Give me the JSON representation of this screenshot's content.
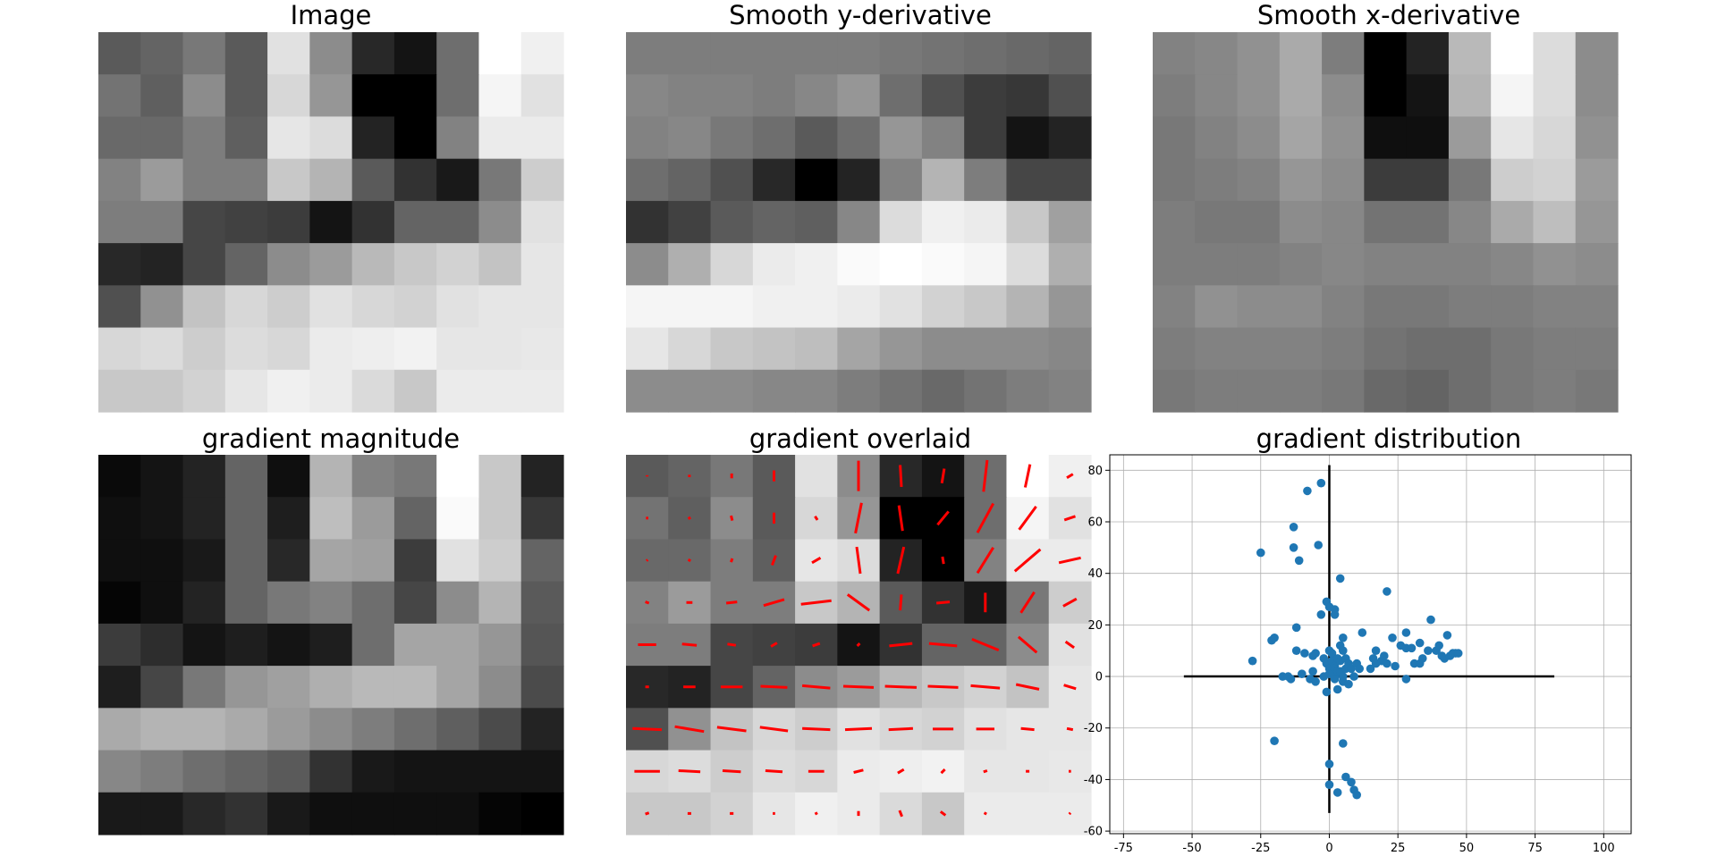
{
  "figure": {
    "panels": [
      {
        "title": "Image"
      },
      {
        "title": "Smooth y-derivative"
      },
      {
        "title": "Smooth x-derivative"
      },
      {
        "title": "gradient magnitude"
      },
      {
        "title": "gradient overlaid"
      },
      {
        "title": "gradient distribution"
      }
    ]
  },
  "chart_data": [
    {
      "type": "heatmap",
      "title": "Image",
      "colormap": "gray",
      "rows": 9,
      "cols": 11,
      "values": [
        [
          90,
          100,
          120,
          90,
          225,
          140,
          40,
          20,
          110,
          255,
          240
        ],
        [
          115,
          95,
          140,
          90,
          215,
          150,
          0,
          0,
          110,
          245,
          225
        ],
        [
          105,
          105,
          125,
          95,
          230,
          220,
          35,
          0,
          130,
          235,
          235
        ],
        [
          130,
          155,
          125,
          125,
          200,
          180,
          90,
          50,
          25,
          120,
          205
        ],
        [
          125,
          125,
          70,
          65,
          60,
          20,
          50,
          100,
          100,
          140,
          225
        ],
        [
          40,
          35,
          70,
          100,
          140,
          155,
          185,
          200,
          210,
          195,
          230
        ],
        [
          80,
          145,
          195,
          215,
          205,
          225,
          215,
          210,
          225,
          230,
          230
        ],
        [
          215,
          220,
          205,
          220,
          215,
          235,
          238,
          242,
          230,
          230,
          232
        ],
        [
          200,
          200,
          210,
          230,
          240,
          235,
          218,
          200,
          235,
          235,
          235
        ]
      ]
    },
    {
      "type": "heatmap",
      "title": "Smooth y-derivative",
      "colormap": "gray",
      "rows": 9,
      "cols": 11,
      "values": [
        [
          125,
          125,
          125,
          125,
          125,
          125,
          120,
          115,
          110,
          105,
          100
        ],
        [
          135,
          130,
          130,
          125,
          135,
          150,
          110,
          80,
          60,
          55,
          80
        ],
        [
          130,
          135,
          120,
          110,
          90,
          110,
          150,
          130,
          60,
          20,
          35
        ],
        [
          110,
          100,
          80,
          40,
          0,
          35,
          130,
          180,
          125,
          70,
          70
        ],
        [
          50,
          65,
          90,
          100,
          95,
          135,
          220,
          240,
          235,
          200,
          160
        ],
        [
          140,
          175,
          215,
          235,
          240,
          250,
          255,
          250,
          245,
          220,
          175
        ],
        [
          245,
          245,
          245,
          240,
          240,
          235,
          225,
          210,
          200,
          180,
          150
        ],
        [
          230,
          215,
          200,
          195,
          190,
          165,
          150,
          140,
          140,
          140,
          135
        ],
        [
          140,
          140,
          140,
          135,
          135,
          125,
          115,
          105,
          115,
          125,
          130
        ]
      ]
    },
    {
      "type": "heatmap",
      "title": "Smooth x-derivative",
      "colormap": "gray",
      "rows": 9,
      "cols": 11,
      "values": [
        [
          130,
          135,
          145,
          170,
          125,
          0,
          35,
          185,
          255,
          220,
          140
        ],
        [
          125,
          135,
          145,
          170,
          140,
          0,
          20,
          180,
          245,
          220,
          140
        ],
        [
          120,
          130,
          140,
          165,
          145,
          15,
          15,
          155,
          230,
          215,
          145
        ],
        [
          120,
          125,
          130,
          150,
          140,
          60,
          60,
          120,
          205,
          210,
          155
        ],
        [
          125,
          120,
          120,
          140,
          135,
          115,
          115,
          135,
          170,
          190,
          150
        ],
        [
          125,
          125,
          125,
          130,
          135,
          130,
          130,
          130,
          135,
          145,
          140
        ],
        [
          130,
          145,
          140,
          140,
          130,
          120,
          120,
          125,
          125,
          130,
          130
        ],
        [
          125,
          130,
          130,
          130,
          125,
          115,
          110,
          110,
          120,
          125,
          125
        ],
        [
          120,
          125,
          125,
          125,
          120,
          105,
          100,
          110,
          120,
          125,
          120
        ]
      ]
    },
    {
      "type": "heatmap",
      "title": "gradient magnitude",
      "colormap": "gray",
      "rows": 9,
      "cols": 11,
      "values": [
        [
          10,
          20,
          35,
          100,
          15,
          180,
          130,
          120,
          255,
          200,
          35
        ],
        [
          15,
          20,
          35,
          100,
          30,
          190,
          155,
          100,
          250,
          200,
          55
        ],
        [
          15,
          15,
          25,
          100,
          40,
          165,
          160,
          60,
          225,
          205,
          100
        ],
        [
          5,
          15,
          35,
          100,
          120,
          130,
          110,
          70,
          140,
          180,
          90
        ],
        [
          60,
          45,
          20,
          30,
          20,
          30,
          110,
          165,
          165,
          150,
          85
        ],
        [
          30,
          70,
          120,
          150,
          160,
          175,
          185,
          185,
          165,
          140,
          75
        ],
        [
          170,
          180,
          180,
          170,
          155,
          140,
          125,
          110,
          95,
          75,
          35
        ],
        [
          135,
          125,
          110,
          100,
          90,
          50,
          25,
          20,
          20,
          20,
          20
        ],
        [
          25,
          25,
          40,
          50,
          25,
          15,
          15,
          15,
          15,
          5,
          0
        ]
      ]
    },
    {
      "type": "heatmap",
      "title": "gradient overlaid",
      "colormap": "gray",
      "overlay": "gradient vectors",
      "overlay_color": "#ff0000",
      "rows": 9,
      "cols": 11,
      "values": [
        [
          90,
          100,
          120,
          90,
          225,
          140,
          40,
          20,
          110,
          255,
          240
        ],
        [
          115,
          95,
          140,
          90,
          215,
          150,
          0,
          0,
          110,
          245,
          225
        ],
        [
          105,
          105,
          125,
          95,
          230,
          220,
          35,
          0,
          130,
          235,
          235
        ],
        [
          130,
          155,
          125,
          125,
          200,
          180,
          90,
          50,
          25,
          120,
          205
        ],
        [
          125,
          125,
          70,
          65,
          60,
          20,
          50,
          100,
          100,
          140,
          225
        ],
        [
          40,
          35,
          70,
          100,
          140,
          155,
          185,
          200,
          210,
          195,
          230
        ],
        [
          80,
          145,
          195,
          215,
          205,
          225,
          215,
          210,
          225,
          230,
          230
        ],
        [
          215,
          220,
          205,
          220,
          215,
          235,
          238,
          242,
          230,
          230,
          232
        ],
        [
          200,
          200,
          210,
          230,
          240,
          235,
          218,
          200,
          235,
          235,
          235
        ]
      ]
    },
    {
      "type": "scatter",
      "title": "gradient distribution",
      "color": "#1f77b4",
      "xlim": [
        -80,
        110
      ],
      "ylim": [
        -61,
        86
      ],
      "xticks": [
        -75,
        -50,
        -25,
        0,
        25,
        50,
        75,
        100
      ],
      "yticks": [
        -60,
        -40,
        -20,
        0,
        20,
        40,
        60,
        80
      ],
      "grid": true,
      "axis_lines": {
        "x": [
          -53,
          82
        ],
        "y": [
          -53,
          82
        ]
      },
      "points": [
        [
          -28,
          6
        ],
        [
          -25,
          48
        ],
        [
          -21,
          14
        ],
        [
          -20,
          -25
        ],
        [
          -20,
          15
        ],
        [
          -17,
          0
        ],
        [
          -15,
          0
        ],
        [
          -14,
          -1
        ],
        [
          -13,
          58
        ],
        [
          -13,
          50
        ],
        [
          -12,
          10
        ],
        [
          -12,
          19
        ],
        [
          -11,
          45
        ],
        [
          -10,
          1
        ],
        [
          -9,
          9
        ],
        [
          -8,
          72
        ],
        [
          -7,
          -1
        ],
        [
          -6,
          8
        ],
        [
          -6,
          2
        ],
        [
          -5,
          -2
        ],
        [
          -5,
          9
        ],
        [
          -4,
          51
        ],
        [
          -3,
          75
        ],
        [
          -3,
          24
        ],
        [
          -2,
          7
        ],
        [
          -2,
          0
        ],
        [
          -1,
          29
        ],
        [
          -1,
          5
        ],
        [
          -1,
          -6
        ],
        [
          0,
          3
        ],
        [
          0,
          1
        ],
        [
          0,
          27
        ],
        [
          0,
          10
        ],
        [
          0,
          -34
        ],
        [
          0,
          -42
        ],
        [
          1,
          6
        ],
        [
          1,
          9
        ],
        [
          2,
          4
        ],
        [
          2,
          0
        ],
        [
          2,
          3
        ],
        [
          2,
          -1
        ],
        [
          2,
          24
        ],
        [
          2,
          26
        ],
        [
          3,
          7
        ],
        [
          3,
          -5
        ],
        [
          3,
          -45
        ],
        [
          3,
          2
        ],
        [
          4,
          38
        ],
        [
          4,
          2
        ],
        [
          4,
          6
        ],
        [
          4,
          12
        ],
        [
          5,
          10
        ],
        [
          5,
          15
        ],
        [
          5,
          -26
        ],
        [
          5,
          -2
        ],
        [
          5,
          0
        ],
        [
          6,
          3
        ],
        [
          6,
          7
        ],
        [
          6,
          -39
        ],
        [
          7,
          4
        ],
        [
          7,
          5
        ],
        [
          7,
          -3
        ],
        [
          8,
          3
        ],
        [
          8,
          -41
        ],
        [
          9,
          0
        ],
        [
          9,
          -44
        ],
        [
          10,
          -46
        ],
        [
          10,
          5
        ],
        [
          11,
          3
        ],
        [
          12,
          17
        ],
        [
          15,
          3
        ],
        [
          16,
          7
        ],
        [
          17,
          10
        ],
        [
          17,
          5
        ],
        [
          19,
          6
        ],
        [
          20,
          8
        ],
        [
          21,
          33
        ],
        [
          21,
          5
        ],
        [
          23,
          15
        ],
        [
          24,
          4
        ],
        [
          26,
          12
        ],
        [
          28,
          -1
        ],
        [
          28,
          17
        ],
        [
          28,
          11
        ],
        [
          30,
          11
        ],
        [
          31,
          5
        ],
        [
          33,
          5
        ],
        [
          33,
          13
        ],
        [
          34,
          7
        ],
        [
          36,
          10
        ],
        [
          37,
          22
        ],
        [
          39,
          10
        ],
        [
          40,
          12
        ],
        [
          41,
          8
        ],
        [
          42,
          7
        ],
        [
          43,
          16
        ],
        [
          44,
          8
        ],
        [
          45,
          9
        ],
        [
          46,
          9
        ],
        [
          47,
          9
        ]
      ]
    }
  ]
}
